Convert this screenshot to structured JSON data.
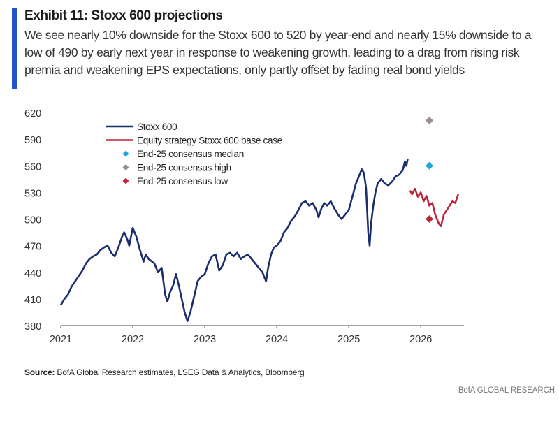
{
  "header": {
    "title": "Exhibit 11: Stoxx 600 projections",
    "subtitle": "We see nearly 10% downside for the Stoxx 600 to 520 by year-end and nearly 15% downside to a low of 490 by early next year in response to weakening growth, leading to a drag from rising risk premia and weakening EPS expectations, only partly offset by fading real bond yields"
  },
  "colors": {
    "accent": "#1f55c8",
    "stoxx": "#1a2e6e",
    "base_case": "#c0243c",
    "median": "#1fa6dc",
    "high": "#9a8c92",
    "low": "#c0243c",
    "axis": "#444444"
  },
  "chart_data": {
    "type": "line",
    "xlabel": "",
    "ylabel": "",
    "x_range": [
      2021.0,
      2026.6
    ],
    "ylim": [
      380,
      620
    ],
    "x_ticks": [
      2021,
      2022,
      2023,
      2024,
      2025,
      2026
    ],
    "y_ticks": [
      380,
      410,
      440,
      470,
      500,
      530,
      560,
      590,
      620
    ],
    "grid": false,
    "legend": [
      {
        "label": "Stoxx 600",
        "kind": "line",
        "color_key": "stoxx"
      },
      {
        "label": "Equity strategy Stoxx 600 base case",
        "kind": "line",
        "color_key": "base_case"
      },
      {
        "label": "End-25 consensus median",
        "kind": "marker",
        "color_key": "median"
      },
      {
        "label": "End-25 consensus high",
        "kind": "marker",
        "color_key": "high"
      },
      {
        "label": "End-25 consensus low",
        "kind": "marker",
        "color_key": "low"
      }
    ],
    "series": [
      {
        "name": "Stoxx 600",
        "color_key": "stoxx",
        "points": [
          [
            2021.0,
            403
          ],
          [
            2021.05,
            410
          ],
          [
            2021.1,
            415
          ],
          [
            2021.15,
            424
          ],
          [
            2021.2,
            430
          ],
          [
            2021.25,
            436
          ],
          [
            2021.3,
            442
          ],
          [
            2021.35,
            450
          ],
          [
            2021.4,
            455
          ],
          [
            2021.45,
            458
          ],
          [
            2021.5,
            460
          ],
          [
            2021.55,
            465
          ],
          [
            2021.6,
            468
          ],
          [
            2021.65,
            470
          ],
          [
            2021.7,
            462
          ],
          [
            2021.75,
            458
          ],
          [
            2021.8,
            468
          ],
          [
            2021.85,
            480
          ],
          [
            2021.88,
            485
          ],
          [
            2021.92,
            478
          ],
          [
            2021.95,
            470
          ],
          [
            2022.0,
            490
          ],
          [
            2022.05,
            480
          ],
          [
            2022.1,
            465
          ],
          [
            2022.15,
            452
          ],
          [
            2022.18,
            460
          ],
          [
            2022.22,
            455
          ],
          [
            2022.3,
            450
          ],
          [
            2022.35,
            440
          ],
          [
            2022.4,
            445
          ],
          [
            2022.45,
            415
          ],
          [
            2022.48,
            407
          ],
          [
            2022.52,
            418
          ],
          [
            2022.56,
            425
          ],
          [
            2022.6,
            438
          ],
          [
            2022.64,
            425
          ],
          [
            2022.68,
            410
          ],
          [
            2022.72,
            395
          ],
          [
            2022.76,
            385
          ],
          [
            2022.8,
            395
          ],
          [
            2022.85,
            412
          ],
          [
            2022.9,
            430
          ],
          [
            2022.95,
            435
          ],
          [
            2023.0,
            438
          ],
          [
            2023.05,
            450
          ],
          [
            2023.1,
            458
          ],
          [
            2023.15,
            460
          ],
          [
            2023.2,
            442
          ],
          [
            2023.25,
            448
          ],
          [
            2023.3,
            460
          ],
          [
            2023.35,
            462
          ],
          [
            2023.4,
            458
          ],
          [
            2023.45,
            462
          ],
          [
            2023.5,
            455
          ],
          [
            2023.55,
            458
          ],
          [
            2023.6,
            460
          ],
          [
            2023.65,
            455
          ],
          [
            2023.7,
            450
          ],
          [
            2023.75,
            445
          ],
          [
            2023.8,
            440
          ],
          [
            2023.85,
            430
          ],
          [
            2023.88,
            445
          ],
          [
            2023.92,
            460
          ],
          [
            2023.96,
            468
          ],
          [
            2024.0,
            470
          ],
          [
            2024.05,
            475
          ],
          [
            2024.1,
            485
          ],
          [
            2024.15,
            490
          ],
          [
            2024.2,
            498
          ],
          [
            2024.25,
            503
          ],
          [
            2024.3,
            510
          ],
          [
            2024.35,
            518
          ],
          [
            2024.4,
            520
          ],
          [
            2024.45,
            515
          ],
          [
            2024.5,
            518
          ],
          [
            2024.55,
            510
          ],
          [
            2024.58,
            502
          ],
          [
            2024.62,
            512
          ],
          [
            2024.66,
            518
          ],
          [
            2024.7,
            515
          ],
          [
            2024.75,
            520
          ],
          [
            2024.8,
            512
          ],
          [
            2024.85,
            505
          ],
          [
            2024.9,
            500
          ],
          [
            2024.95,
            505
          ],
          [
            2025.0,
            510
          ],
          [
            2025.05,
            525
          ],
          [
            2025.1,
            540
          ],
          [
            2025.15,
            550
          ],
          [
            2025.18,
            556
          ],
          [
            2025.21,
            552
          ],
          [
            2025.24,
            535
          ],
          [
            2025.27,
            485
          ],
          [
            2025.29,
            470
          ],
          [
            2025.31,
            495
          ],
          [
            2025.34,
            515
          ],
          [
            2025.37,
            530
          ],
          [
            2025.4,
            540
          ],
          [
            2025.45,
            545
          ],
          [
            2025.5,
            540
          ],
          [
            2025.55,
            538
          ],
          [
            2025.6,
            542
          ],
          [
            2025.65,
            548
          ],
          [
            2025.7,
            550
          ],
          [
            2025.75,
            555
          ],
          [
            2025.78,
            565
          ],
          [
            2025.8,
            560
          ],
          [
            2025.82,
            568
          ]
        ]
      },
      {
        "name": "Equity strategy Stoxx 600 base case",
        "color_key": "base_case",
        "points": [
          [
            2025.85,
            532
          ],
          [
            2025.88,
            528
          ],
          [
            2025.92,
            534
          ],
          [
            2025.96,
            525
          ],
          [
            2026.0,
            530
          ],
          [
            2026.04,
            520
          ],
          [
            2026.08,
            526
          ],
          [
            2026.12,
            515
          ],
          [
            2026.16,
            518
          ],
          [
            2026.2,
            505
          ],
          [
            2026.25,
            495
          ],
          [
            2026.28,
            492
          ],
          [
            2026.32,
            505
          ],
          [
            2026.36,
            510
          ],
          [
            2026.4,
            515
          ],
          [
            2026.44,
            520
          ],
          [
            2026.48,
            518
          ],
          [
            2026.52,
            528
          ]
        ]
      }
    ],
    "markers": [
      {
        "name": "End-25 consensus median",
        "x": 2026.12,
        "y": 560,
        "color_key": "median"
      },
      {
        "name": "End-25 consensus high",
        "x": 2026.12,
        "y": 611,
        "color_key": "high"
      },
      {
        "name": "End-25 consensus low",
        "x": 2026.12,
        "y": 500,
        "color_key": "low"
      }
    ]
  },
  "footer": {
    "source_label": "Source:",
    "source_text": " BofA Global Research estimates, LSEG Data & Analytics, Bloomberg",
    "branding": "BofA GLOBAL RESEARCH"
  }
}
